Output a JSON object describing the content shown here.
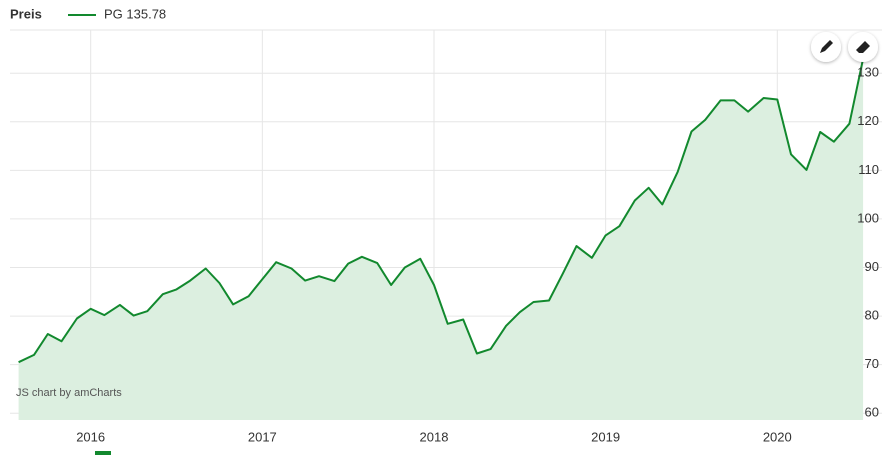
{
  "chart_data": {
    "type": "area-line",
    "header": "Preis",
    "watermark": "JS chart by amCharts",
    "x": [
      2015.58,
      2015.67,
      2015.75,
      2015.83,
      2015.92,
      2016.0,
      2016.08,
      2016.17,
      2016.25,
      2016.33,
      2016.42,
      2016.5,
      2016.58,
      2016.67,
      2016.75,
      2016.83,
      2016.92,
      2017.0,
      2017.08,
      2017.17,
      2017.25,
      2017.33,
      2017.42,
      2017.5,
      2017.58,
      2017.67,
      2017.75,
      2017.83,
      2017.92,
      2018.0,
      2018.08,
      2018.17,
      2018.25,
      2018.33,
      2018.42,
      2018.5,
      2018.58,
      2018.67,
      2018.75,
      2018.83,
      2018.92,
      2019.0,
      2019.08,
      2019.17,
      2019.25,
      2019.33,
      2019.42,
      2019.5,
      2019.58,
      2019.67,
      2019.75,
      2019.83,
      2019.92,
      2020.0,
      2020.08,
      2020.17,
      2020.25,
      2020.33,
      2020.42,
      2020.5
    ],
    "series": [
      {
        "name": "PG 135.78",
        "color": "#12892e",
        "fill_color": "#dcefe0",
        "values": [
          70.5,
          72,
          76.3,
          74.8,
          79.5,
          81.5,
          80.2,
          82.3,
          80.1,
          81,
          84.5,
          85.5,
          87.3,
          89.8,
          86.8,
          82.4,
          84.1,
          87.6,
          91.1,
          89.8,
          87.3,
          88.2,
          87.2,
          90.8,
          92.2,
          90.9,
          86.4,
          90,
          91.8,
          86.4,
          78.4,
          79.3,
          72.3,
          73.2,
          78,
          80.8,
          82.9,
          83.2,
          88.7,
          94.4,
          92,
          96.6,
          98.5,
          103.8,
          106.4,
          103,
          109.7,
          118,
          120.4,
          124.4,
          124.4,
          122.1,
          124.9,
          124.6,
          113.3,
          110.1,
          117.9,
          115.9,
          119.6,
          133
        ]
      }
    ],
    "xlim": [
      2015.53,
      2020.61
    ],
    "xticks": [
      2016,
      2017,
      2018,
      2019,
      2020
    ],
    "ylim": [
      58.6,
      138.9
    ],
    "yticks": [
      60,
      70,
      80,
      90,
      100,
      110,
      120,
      130
    ],
    "grid": true
  }
}
